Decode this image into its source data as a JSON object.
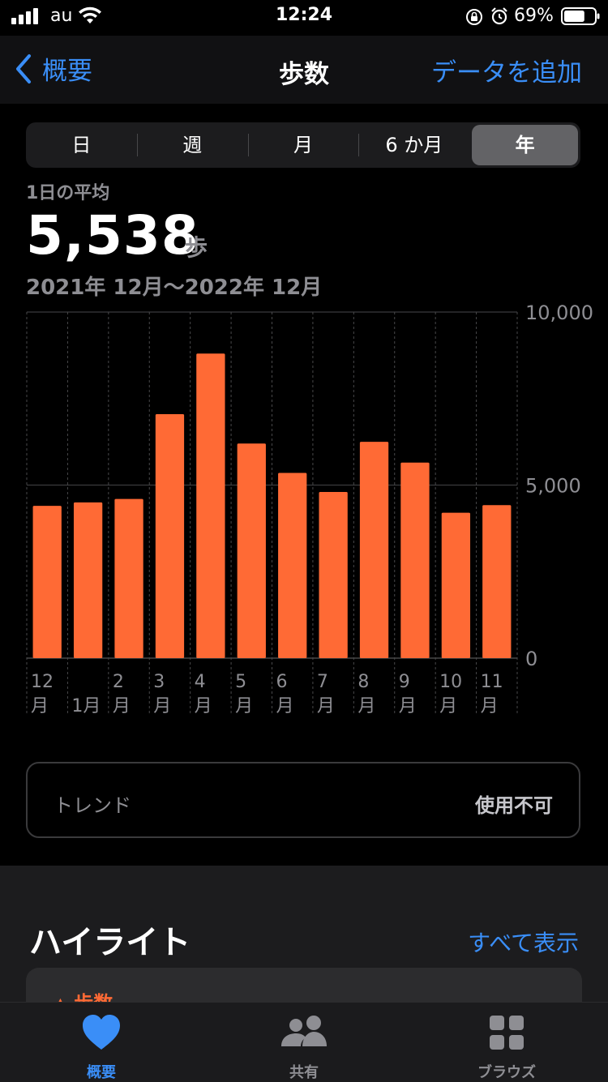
{
  "status_bar": {
    "carrier": "au",
    "time": "12:24",
    "battery_percent": "69%",
    "battery_level": 0.69,
    "icons": [
      "signal-icon",
      "wifi-icon",
      "orientation-lock-icon",
      "alarm-icon",
      "battery-icon"
    ]
  },
  "nav": {
    "back_label": "概要",
    "title": "歩数",
    "add_label": "データを追加"
  },
  "segments": [
    {
      "label": "日",
      "active": false
    },
    {
      "label": "週",
      "active": false
    },
    {
      "label": "月",
      "active": false
    },
    {
      "label": "6 か月",
      "active": false
    },
    {
      "label": "年",
      "active": true
    }
  ],
  "summary": {
    "avg_label": "1日の平均",
    "avg_value": "5,538",
    "unit": "歩",
    "date_range": "2021年 12月〜2022年 12月"
  },
  "chart_data": {
    "type": "bar",
    "categories": [
      "12月",
      "1月",
      "2月",
      "3月",
      "4月",
      "5月",
      "6月",
      "7月",
      "8月",
      "9月",
      "10月",
      "11月"
    ],
    "tick_labels": [
      [
        "12",
        "月"
      ],
      [
        "",
        "1月"
      ],
      [
        "2",
        "月"
      ],
      [
        "3",
        "月"
      ],
      [
        "4",
        "月"
      ],
      [
        "5",
        "月"
      ],
      [
        "6",
        "月"
      ],
      [
        "7",
        "月"
      ],
      [
        "8",
        "月"
      ],
      [
        "9",
        "月"
      ],
      [
        "10",
        "月"
      ],
      [
        "11",
        "月"
      ]
    ],
    "values": [
      4400,
      4500,
      4600,
      7050,
      8800,
      6200,
      5350,
      4800,
      6250,
      5650,
      4200,
      4420
    ],
    "ylim": [
      0,
      10000
    ],
    "y_ticks": [
      0,
      5000,
      10000
    ],
    "y_tick_labels": [
      "0",
      "5,000",
      "10,000"
    ],
    "bar_color": "#ff6a35",
    "grid": true
  },
  "trend": {
    "label": "トレンド",
    "value": "使用不可"
  },
  "highlights": {
    "title": "ハイライト",
    "show_all": "すべて表示",
    "card_title": "歩数"
  },
  "tabbar": [
    {
      "label": "概要",
      "icon": "heart-icon",
      "active": true
    },
    {
      "label": "共有",
      "icon": "people-icon",
      "active": false
    },
    {
      "label": "ブラウズ",
      "icon": "grid-icon",
      "active": false
    }
  ],
  "colors": {
    "accent": "#3a8ef7",
    "bar": "#ff6a35"
  }
}
